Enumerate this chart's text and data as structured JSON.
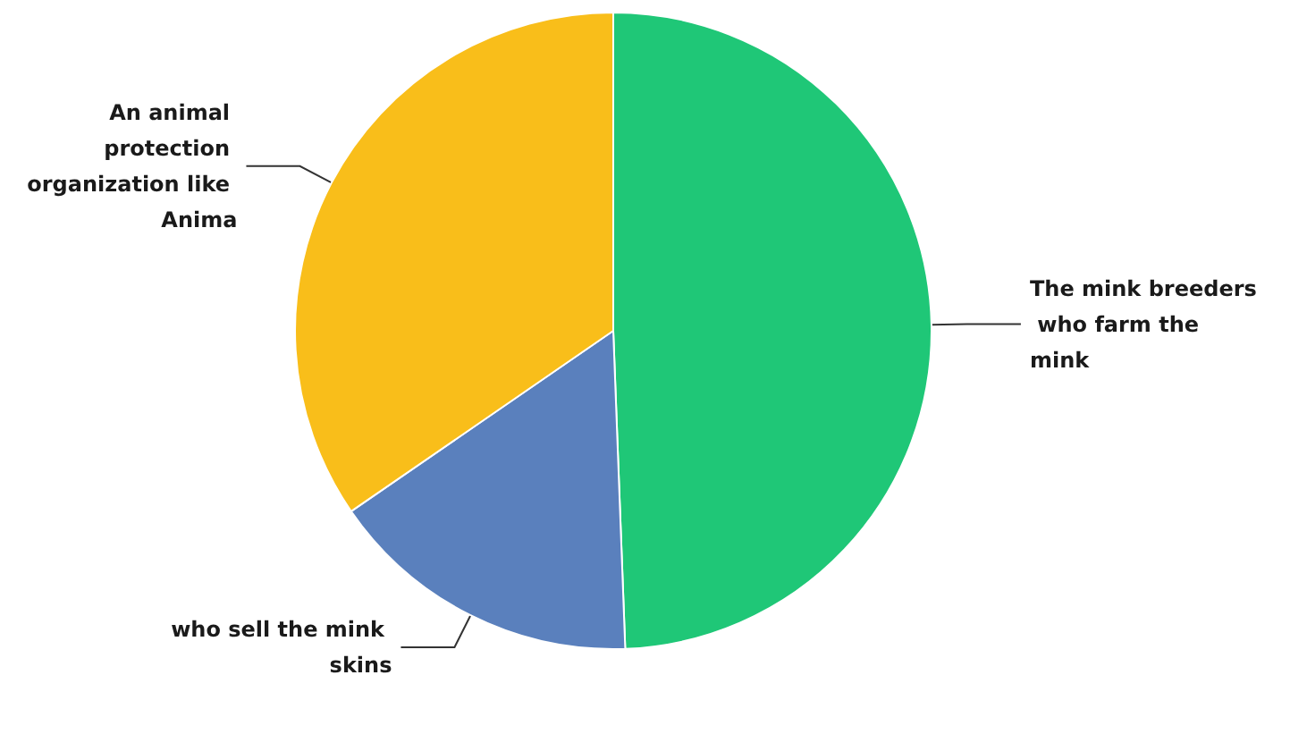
{
  "chart_data": {
    "type": "pie",
    "categories": [
      "The mink breeders who farm the mink",
      "who sell the mink skins",
      "An animal protection organization like Anima"
    ],
    "values": [
      49.4,
      16,
      34.6
    ],
    "colors": [
      "#1fc777",
      "#5a80bd",
      "#f9be1a"
    ],
    "legend": false
  }
}
